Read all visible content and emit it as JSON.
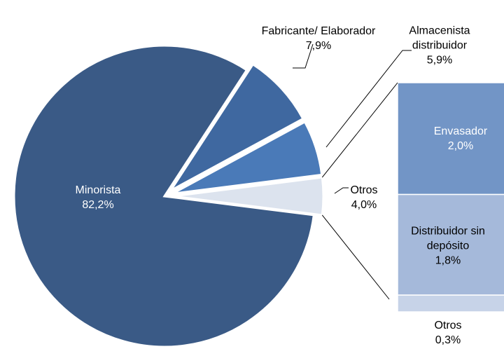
{
  "chart_data": {
    "type": "pie-of-bar",
    "categories": [
      "Minorista",
      "Fabricante/ Elaborador",
      "Almacenista distribuidor",
      "Otros"
    ],
    "values": [
      82.2,
      7.9,
      5.9,
      4.0
    ],
    "value_labels": [
      "82,2%",
      "7,9%",
      "5,9%",
      "4,0%"
    ],
    "colors": [
      "#3a5a86",
      "#3f68a0",
      "#4a7ab8",
      "#dce3ee"
    ],
    "bar": {
      "categories": [
        "Envasador",
        "Distribuidor sin depósito",
        "Otros"
      ],
      "values": [
        2.0,
        1.8,
        0.3
      ],
      "value_labels": [
        "2,0%",
        "1,8%",
        "0,3%"
      ],
      "colors": [
        "#7295c6",
        "#a5b9da",
        "#c7d3e8"
      ]
    }
  }
}
